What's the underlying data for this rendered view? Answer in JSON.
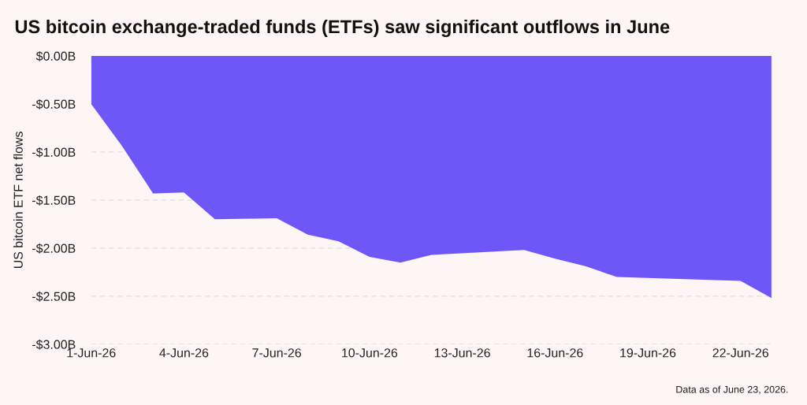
{
  "chart_data": {
    "type": "area",
    "title": "US bitcoin exchange-traded funds (ETFs) saw significant outflows in June",
    "ylabel": "US bitcoin ETF net flows",
    "x": [
      "2026-06-01",
      "2026-06-02",
      "2026-06-03",
      "2026-06-04",
      "2026-06-05",
      "2026-06-07",
      "2026-06-08",
      "2026-06-09",
      "2026-06-10",
      "2026-06-11",
      "2026-06-12",
      "2026-06-15",
      "2026-06-16",
      "2026-06-17",
      "2026-06-18",
      "2026-06-22",
      "2026-06-23"
    ],
    "series": [
      {
        "color": "#6e57f6",
        "values": [
          -0.5,
          -0.94,
          -1.43,
          -1.42,
          -1.7,
          -1.69,
          -1.86,
          -1.93,
          -2.09,
          -2.15,
          -2.07,
          -2.02,
          -2.11,
          -2.19,
          -2.3,
          -2.34,
          -2.52
        ]
      }
    ],
    "xlim": [
      "2026-06-01",
      "2026-06-23"
    ],
    "xticks": [
      {
        "value": "2026-06-01",
        "label": "1-Jun-26"
      },
      {
        "value": "2026-06-04",
        "label": "4-Jun-26"
      },
      {
        "value": "2026-06-07",
        "label": "7-Jun-26"
      },
      {
        "value": "2026-06-10",
        "label": "10-Jun-26"
      },
      {
        "value": "2026-06-13",
        "label": "13-Jun-26"
      },
      {
        "value": "2026-06-16",
        "label": "16-Jun-26"
      },
      {
        "value": "2026-06-19",
        "label": "19-Jun-26"
      },
      {
        "value": "2026-06-22",
        "label": "22-Jun-26"
      }
    ],
    "ylim": [
      -3.0,
      0.0
    ],
    "yticks": [
      {
        "value": 0.0,
        "label": "$0.00B"
      },
      {
        "value": -0.5,
        "label": "-$0.50B"
      },
      {
        "value": -1.0,
        "label": "-$1.00B"
      },
      {
        "value": -1.5,
        "label": "-$1.50B"
      },
      {
        "value": -2.0,
        "label": "-$2.00B"
      },
      {
        "value": -2.5,
        "label": "-$2.50B"
      },
      {
        "value": -3.0,
        "label": "-$3.00B"
      }
    ],
    "grid": "y",
    "annotations": [
      "Data as of June 23, 2026."
    ]
  }
}
